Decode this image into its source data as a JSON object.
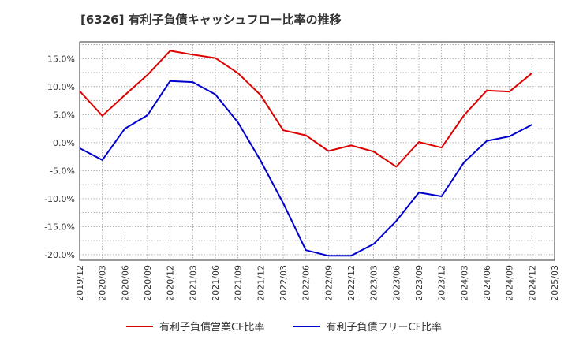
{
  "chart_data": {
    "type": "line",
    "title": "[6326]  有利子負債キャッシュフロー比率の推移",
    "x": [
      "2019/12",
      "2020/03",
      "2020/06",
      "2020/09",
      "2020/12",
      "2021/03",
      "2021/06",
      "2021/09",
      "2021/12",
      "2022/03",
      "2022/06",
      "2022/09",
      "2022/12",
      "2023/03",
      "2023/06",
      "2023/09",
      "2023/12",
      "2024/03",
      "2024/06",
      "2024/09",
      "2024/12",
      "2025/03"
    ],
    "series": [
      {
        "name": "有利子負債営業CF比率",
        "color": "#dd0000",
        "values": [
          9.2,
          4.8,
          8.5,
          12.1,
          16.4,
          15.7,
          15.1,
          12.4,
          8.5,
          2.2,
          1.3,
          -1.5,
          -0.5,
          -1.6,
          -4.3,
          0.1,
          -0.9,
          4.9,
          9.3,
          9.1,
          12.4,
          null
        ]
      },
      {
        "name": "有利子負債フリーCF比率",
        "color": "#0000cc",
        "values": [
          -1.0,
          -3.1,
          2.5,
          4.9,
          11.0,
          10.8,
          8.6,
          3.6,
          -3.2,
          -10.8,
          -19.2,
          -20.2,
          -20.2,
          -18.1,
          -14.0,
          -8.9,
          -9.6,
          -3.5,
          0.3,
          1.1,
          3.2,
          null
        ]
      }
    ],
    "yticks": [
      "15.0%",
      "10.0%",
      "5.0%",
      "0.0%",
      "-5.0%",
      "-10.0%",
      "-15.0%",
      "-20.0%"
    ],
    "ylim": [
      -21,
      18
    ],
    "xlabel": "",
    "ylabel": "",
    "grid": true,
    "legend_position": "bottom"
  }
}
